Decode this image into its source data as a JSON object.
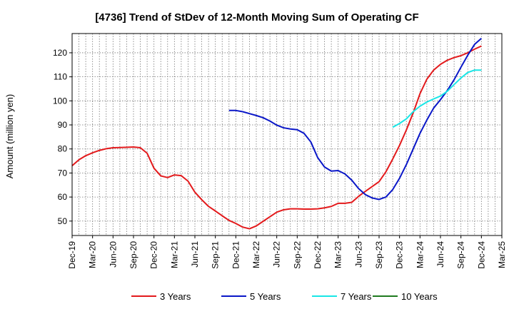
{
  "chart_data": {
    "type": "line",
    "title": "[4736]  Trend of StDev of 12-Month Moving Sum of Operating CF",
    "xlabel": "",
    "ylabel": "Amount (million yen)",
    "ylim": [
      44,
      128
    ],
    "y_ticks": [
      50,
      60,
      70,
      80,
      90,
      100,
      110,
      120
    ],
    "x_tick_labels": [
      "Dec-19",
      "Mar-20",
      "Jun-20",
      "Sep-20",
      "Dec-20",
      "Mar-21",
      "Jun-21",
      "Sep-21",
      "Dec-21",
      "Mar-22",
      "Jun-22",
      "Sep-22",
      "Dec-22",
      "Mar-23",
      "Jun-23",
      "Sep-23",
      "Dec-23",
      "Mar-24",
      "Jun-24",
      "Sep-24",
      "Dec-24",
      "Mar-25"
    ],
    "grid": true,
    "legend_position": "bottom",
    "series": [
      {
        "name": "3 Years",
        "color": "#e31a1c",
        "start_label": "Dec-19",
        "values": [
          73,
          75.5,
          77.2,
          78.4,
          79.4,
          80.1,
          80.5,
          80.6,
          80.7,
          80.8,
          80.5,
          78.2,
          72,
          68.8,
          68.1,
          69.2,
          68.9,
          66.6,
          62,
          58.9,
          56.1,
          54.2,
          52.2,
          50.3,
          49,
          47.5,
          46.8,
          48,
          49.9,
          51.8,
          53.7,
          54.7,
          55.1,
          55.1,
          55,
          55,
          55.1,
          55.5,
          56.1,
          57.4,
          57.4,
          57.8,
          60.3,
          62.4,
          64.4,
          66.4,
          70.5,
          75.8,
          81.5,
          87.9,
          95,
          103,
          109,
          112.8,
          115.2,
          116.9,
          118,
          118.8,
          120,
          121.5,
          122.8
        ]
      },
      {
        "name": "5 Years",
        "color": "#0a17c8",
        "start_label": "Nov-21",
        "values": [
          96,
          96,
          95.5,
          94.7,
          93.9,
          93,
          91.6,
          89.9,
          88.8,
          88.3,
          88,
          86.5,
          82.9,
          76.4,
          72.5,
          70.8,
          71,
          69.6,
          67,
          63.5,
          61,
          59.6,
          59,
          60,
          63.1,
          67.8,
          73.5,
          80,
          86.5,
          92,
          97,
          100.5,
          104.3,
          108.8,
          114,
          119,
          123.5,
          126
        ]
      },
      {
        "name": "7 Years",
        "color": "#19e6e6",
        "start_label": "Nov-23",
        "values": [
          89,
          90.6,
          92.5,
          95.5,
          97.8,
          99.5,
          100.8,
          102,
          104,
          106.8,
          109.5,
          111.8,
          112.8,
          112.8
        ]
      },
      {
        "name": "10 Years",
        "color": "#1f7a1f",
        "start_label": "",
        "values": []
      }
    ]
  }
}
